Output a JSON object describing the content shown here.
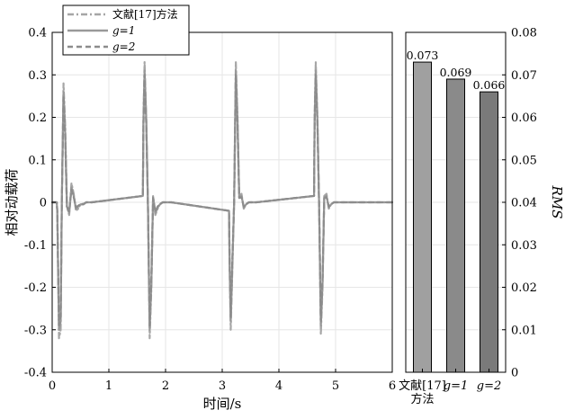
{
  "chart_data": [
    {
      "type": "line",
      "xlabel": "时间/s",
      "ylabel": "相对动载荷",
      "xlim": [
        0,
        6
      ],
      "ylim": [
        -0.4,
        0.4
      ],
      "xticks": [
        "0",
        "1",
        "2",
        "3",
        "4",
        "5",
        "6"
      ],
      "yticks": [
        "0.4",
        "0.3",
        "0.2",
        "0.1",
        "0",
        "-0.1",
        "-0.2",
        "-0.3",
        "-0.4"
      ],
      "grid": true,
      "legend": {
        "placement": "top-left",
        "entries": [
          "文献[17]方法",
          "g=1",
          "g=2"
        ]
      },
      "series": [
        {
          "name": "文献[17]方法",
          "color": "#a6a6a6",
          "style": "dash-dot",
          "x": [
            0,
            0.08,
            0.09,
            0.12,
            0.15,
            0.17,
            0.2,
            0.23,
            0.26,
            0.3,
            0.34,
            0.38,
            0.42,
            0.46,
            0.5,
            0.55,
            0.6,
            0.7,
            1.6,
            1.61,
            1.63,
            1.66,
            1.69,
            1.72,
            1.75,
            1.78,
            1.82,
            1.86,
            1.9,
            1.95,
            2.0,
            2.1,
            3.12,
            3.13,
            3.15,
            3.18,
            3.21,
            3.24,
            3.27,
            3.3,
            3.34,
            3.38,
            3.42,
            3.47,
            3.52,
            3.6,
            4.62,
            4.63,
            4.65,
            4.68,
            4.71,
            4.74,
            4.77,
            4.8,
            4.84,
            4.88,
            4.92,
            4.97,
            5.02,
            5.1,
            6.0
          ],
          "y": [
            0,
            0,
            -0.02,
            -0.32,
            -0.3,
            0,
            0.28,
            0.18,
            -0.01,
            -0.03,
            0.045,
            0.02,
            -0.02,
            -0.015,
            -0.005,
            -0.005,
            0,
            0,
            0.015,
            0.2,
            0.33,
            0.2,
            -0.01,
            -0.32,
            -0.2,
            0.015,
            -0.03,
            -0.015,
            -0.005,
            0,
            0,
            0,
            -0.02,
            -0.15,
            -0.3,
            -0.15,
            0,
            0.33,
            0.2,
            0.015,
            0.02,
            -0.015,
            -0.005,
            0,
            0,
            0,
            0.015,
            0.2,
            0.33,
            0.2,
            -0.01,
            -0.31,
            -0.2,
            0.015,
            0.02,
            -0.015,
            -0.005,
            0,
            0,
            0,
            0
          ]
        },
        {
          "name": "g=1",
          "color": "#999999",
          "style": "solid",
          "x": [
            0,
            0.08,
            0.09,
            0.12,
            0.15,
            0.17,
            0.2,
            0.23,
            0.26,
            0.3,
            0.34,
            0.38,
            0.42,
            0.46,
            0.5,
            0.55,
            0.6,
            0.7,
            1.6,
            1.61,
            1.63,
            1.66,
            1.69,
            1.72,
            1.75,
            1.78,
            1.82,
            1.86,
            1.9,
            1.95,
            2.0,
            2.1,
            3.12,
            3.13,
            3.15,
            3.18,
            3.21,
            3.24,
            3.27,
            3.3,
            3.34,
            3.38,
            3.42,
            3.47,
            3.52,
            3.6,
            4.62,
            4.63,
            4.65,
            4.68,
            4.71,
            4.74,
            4.77,
            4.8,
            4.84,
            4.88,
            4.92,
            4.97,
            5.02,
            5.1,
            6.0
          ],
          "y": [
            0,
            0,
            -0.02,
            -0.3,
            -0.28,
            0,
            0.26,
            0.16,
            -0.01,
            -0.025,
            0.035,
            0.015,
            -0.015,
            -0.01,
            -0.005,
            -0.005,
            0,
            0,
            0.015,
            0.19,
            0.31,
            0.19,
            -0.01,
            -0.3,
            -0.19,
            0.012,
            -0.025,
            -0.012,
            -0.005,
            0,
            0,
            0,
            -0.02,
            -0.14,
            -0.28,
            -0.14,
            0,
            0.31,
            0.19,
            0.012,
            0.015,
            -0.012,
            -0.005,
            0,
            0,
            0,
            0.015,
            0.19,
            0.31,
            0.19,
            -0.01,
            -0.29,
            -0.19,
            0.012,
            0.015,
            -0.012,
            -0.005,
            0,
            0,
            0,
            0
          ]
        },
        {
          "name": "g=2",
          "color": "#8c8c8c",
          "style": "dashed",
          "x": [
            0,
            0.08,
            0.09,
            0.12,
            0.15,
            0.17,
            0.2,
            0.23,
            0.26,
            0.3,
            0.34,
            0.38,
            0.42,
            0.46,
            0.5,
            0.55,
            0.6,
            0.7,
            1.6,
            1.61,
            1.63,
            1.66,
            1.69,
            1.72,
            1.75,
            1.78,
            1.82,
            1.86,
            1.9,
            1.95,
            2.0,
            2.1,
            3.12,
            3.13,
            3.15,
            3.18,
            3.21,
            3.24,
            3.27,
            3.3,
            3.34,
            3.38,
            3.42,
            3.47,
            3.52,
            3.6,
            4.62,
            4.63,
            4.65,
            4.68,
            4.71,
            4.74,
            4.77,
            4.8,
            4.84,
            4.88,
            4.92,
            4.97,
            5.02,
            5.1,
            6.0
          ],
          "y": [
            0,
            0,
            -0.02,
            -0.29,
            -0.27,
            0,
            0.25,
            0.15,
            -0.01,
            -0.022,
            0.03,
            0.012,
            -0.012,
            -0.008,
            -0.004,
            -0.004,
            0,
            0,
            0.015,
            0.18,
            0.3,
            0.18,
            -0.01,
            -0.29,
            -0.18,
            0.01,
            -0.022,
            -0.01,
            -0.004,
            0,
            0,
            0,
            -0.02,
            -0.13,
            -0.27,
            -0.13,
            0,
            0.3,
            0.18,
            0.01,
            0.012,
            -0.01,
            -0.004,
            0,
            0,
            0,
            0.015,
            0.18,
            0.3,
            0.18,
            -0.01,
            -0.28,
            -0.18,
            0.01,
            0.012,
            -0.01,
            -0.004,
            0,
            0,
            0,
            0
          ]
        }
      ]
    },
    {
      "type": "bar",
      "ylabel": "RMS",
      "ylim": [
        0,
        0.08
      ],
      "yticks": [
        "0.08",
        "0.07",
        "0.06",
        "0.05",
        "0.04",
        "0.03",
        "0.02",
        "0.01",
        "0"
      ],
      "grid": true,
      "categories": [
        "文献[17]方法",
        "g=1",
        "g=2"
      ],
      "category_lines": [
        [
          "文献[17]",
          "方法"
        ],
        [
          "g=1"
        ],
        [
          "g=2"
        ]
      ],
      "values": [
        0.073,
        0.069,
        0.066
      ],
      "value_labels": [
        "0.073",
        "0.069",
        "0.066"
      ],
      "colors": [
        "#a0a0a0",
        "#8a8a8a",
        "#7a7a7a"
      ]
    }
  ]
}
